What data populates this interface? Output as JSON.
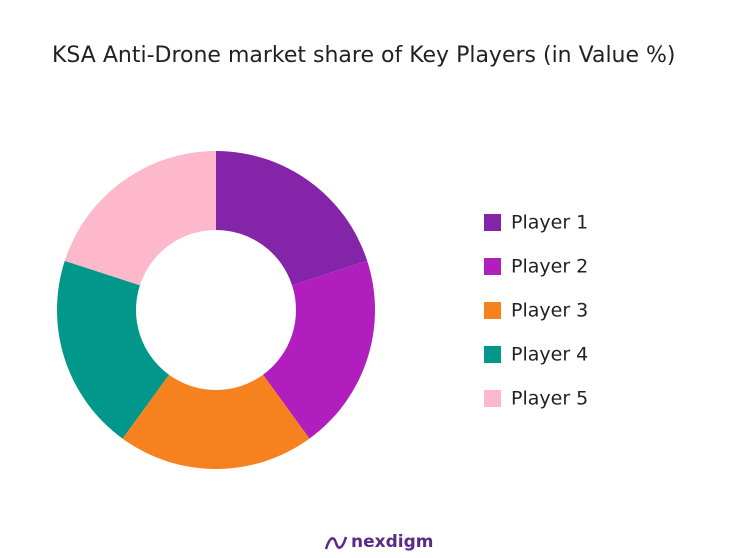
{
  "chart_data": {
    "type": "donut",
    "title": "KSA Anti-Drone market share of Key Players (in Value %)",
    "categories": [
      "Player 1",
      "Player 2",
      "Player 3",
      "Player 4",
      "Player 5"
    ],
    "values": [
      20,
      20,
      20,
      20,
      20
    ],
    "colors": [
      "#8424a9",
      "#b01fbe",
      "#f5821f",
      "#01978a",
      "#fdb8cb"
    ],
    "legend": "right"
  },
  "footer": {
    "logo": "nexdigm"
  }
}
